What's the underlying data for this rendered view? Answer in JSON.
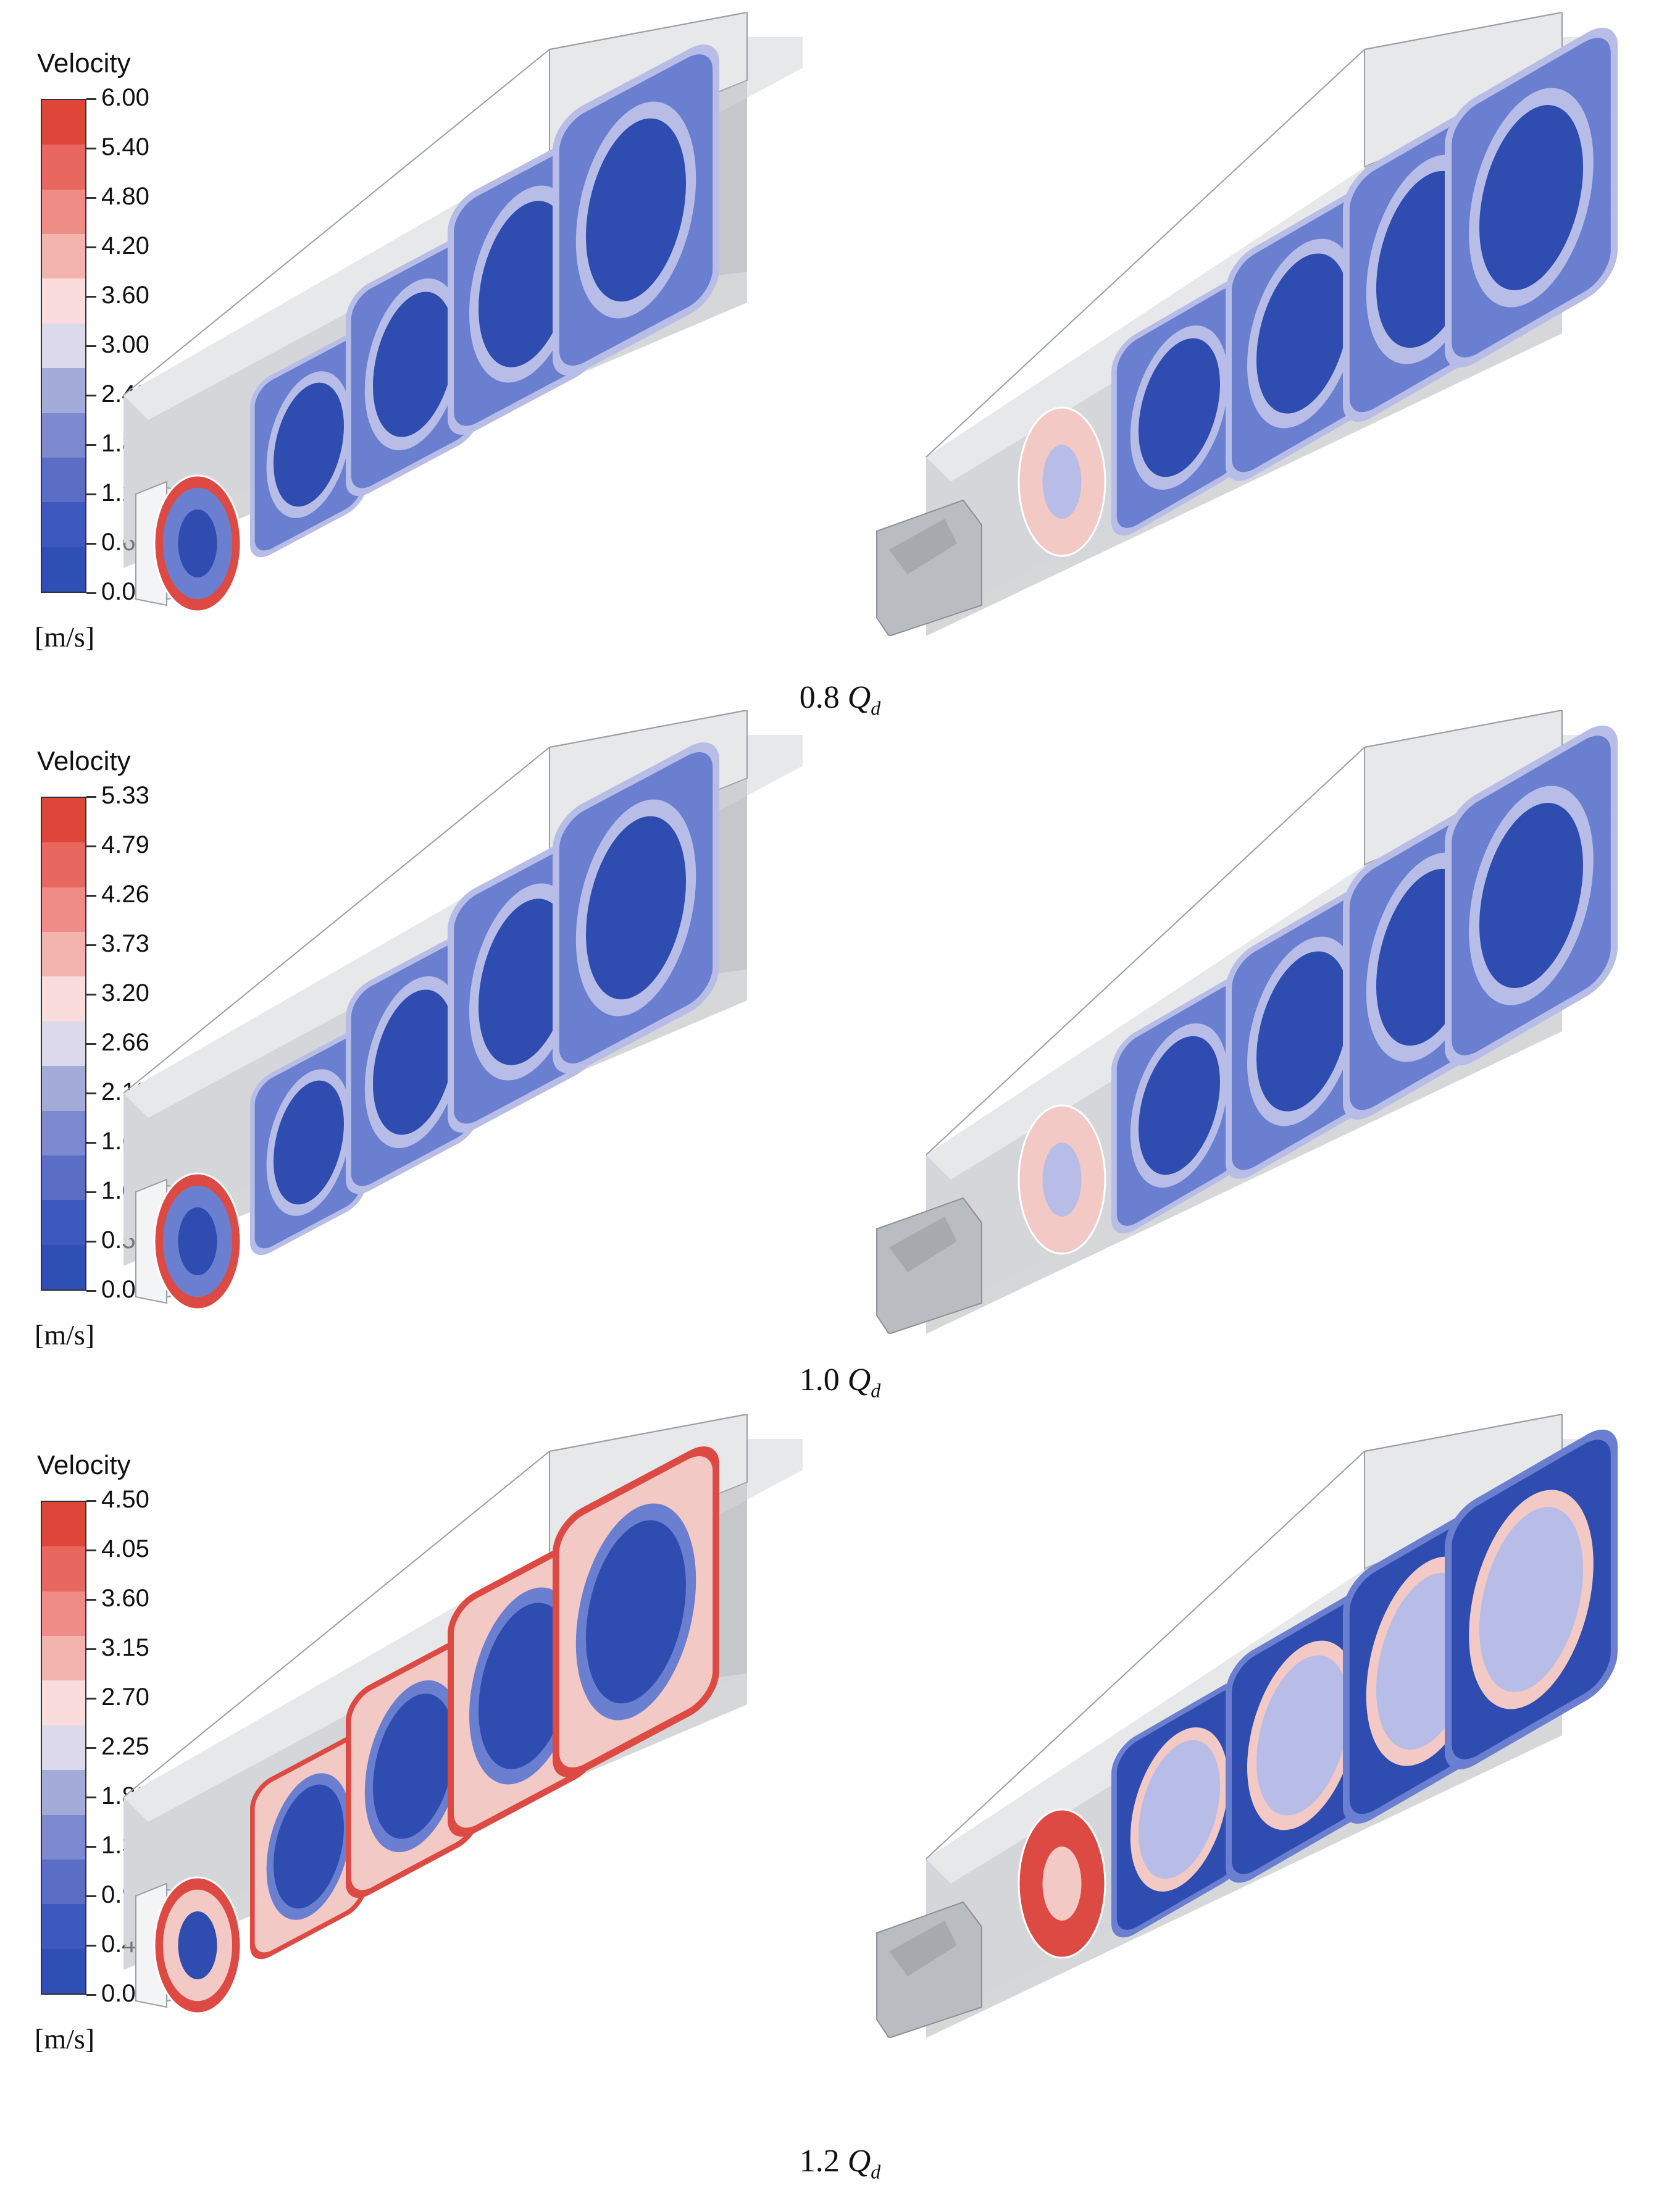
{
  "figure": {
    "panels": [
      {
        "legend": {
          "title": "Velocity",
          "unit": "[m/s]",
          "ticks": [
            "6.00",
            "5.40",
            "4.80",
            "4.20",
            "3.60",
            "3.00",
            "2.40",
            "1.80",
            "1.20",
            "0.60",
            "0.00"
          ]
        },
        "caption": {
          "value": "0.8",
          "symbol": "Q",
          "subscript": "d"
        },
        "left_view_level": "low",
        "right_view_level": "low"
      },
      {
        "legend": {
          "title": "Velocity",
          "unit": "[m/s]",
          "ticks": [
            "5.33",
            "4.79",
            "4.26",
            "3.73",
            "3.20",
            "2.66",
            "2.13",
            "1.60",
            "1.07",
            "0.53",
            "0.00"
          ]
        },
        "caption": {
          "value": "1.0",
          "symbol": "Q",
          "subscript": "d"
        },
        "left_view_level": "low",
        "right_view_level": "low"
      },
      {
        "legend": {
          "title": "Velocity",
          "unit": "[m/s]",
          "ticks": [
            "4.50",
            "4.05",
            "3.60",
            "3.15",
            "2.70",
            "2.25",
            "1.80",
            "1.35",
            "0.90",
            "0.45",
            "0.00"
          ]
        },
        "caption": {
          "value": "1.2",
          "symbol": "Q",
          "subscript": "d"
        },
        "left_view_level": "mixed",
        "right_view_level": "high"
      }
    ]
  },
  "colors": {
    "colorbar_bands_top_to_bottom": [
      "#e0453a",
      "#e8675e",
      "#ee8d86",
      "#f4b4ae",
      "#fadcdc",
      "#dcd9ec",
      "#a5abd9",
      "#7d8ad0",
      "#5a6ec6",
      "#3e59bd",
      "#2e4fb3"
    ],
    "duct_light": "#e7e8ea",
    "duct_mid": "#d4d6d9",
    "duct_dark": "#b9bcc0",
    "duct_edge": "#9a9da2",
    "core_blue": "#2f4db0",
    "ring_blue": "#6b7fd0",
    "pale_blue": "#b7bde6",
    "pale_pink": "#f3c9c6",
    "hot_red": "#dc4a43"
  }
}
